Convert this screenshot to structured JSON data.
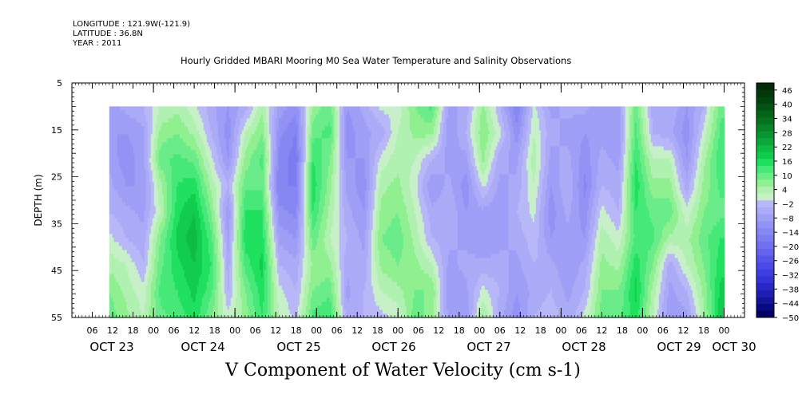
{
  "header": {
    "longitude": "LONGITUDE : 121.9W(-121.9)",
    "latitude": "LATITUDE : 36.8N",
    "year": "YEAR : 2011"
  },
  "chart_data": {
    "type": "heatmap",
    "title": "Hourly Gridded MBARI Mooring M0 Sea Water Temperature and Salinity Observations",
    "variable_title": "V Component of Water Velocity (cm s-1)",
    "ylabel": "DEPTH (m)",
    "ylim": [
      55,
      5
    ],
    "yticks": [
      5,
      15,
      25,
      35,
      45,
      55
    ],
    "data_depth_range": [
      10,
      55
    ],
    "x_hour_ticks": [
      "06",
      "12",
      "18",
      "00",
      "06",
      "12",
      "18",
      "00",
      "06",
      "12",
      "18",
      "00",
      "06",
      "12",
      "18",
      "00",
      "06",
      "12",
      "18",
      "00",
      "06",
      "12",
      "18",
      "00",
      "06",
      "12",
      "18",
      "00",
      "06",
      "12",
      "18",
      "00"
    ],
    "x_date_labels": [
      "OCT 23",
      "OCT 24",
      "OCT 25",
      "OCT 26",
      "OCT 27",
      "OCT 28",
      "OCT 29",
      "OCT 30"
    ],
    "data_time_range_hours": [
      11,
      192
    ],
    "axis_time_range_hours": [
      0,
      198
    ],
    "colorbar": {
      "labels": [
        "46",
        "40",
        "34",
        "28",
        "22",
        "16",
        "10",
        "4",
        "-2",
        "-8",
        "-14",
        "-20",
        "-26",
        "-32",
        "-38",
        "-44",
        "-50"
      ],
      "levels": [
        -50,
        -47,
        -44,
        -41,
        -38,
        -35,
        -32,
        -29,
        -26,
        -23,
        -20,
        -17,
        -14,
        -11,
        -8,
        -5,
        -2,
        1,
        4,
        7,
        10,
        13,
        16,
        19,
        22,
        25,
        28,
        31,
        34,
        37,
        40,
        43,
        46,
        49
      ],
      "low_colors": [
        "#000066",
        "#0a0a80",
        "#141499",
        "#1e1eb3",
        "#2828c8",
        "#3333d6",
        "#3d3de0",
        "#4a4ae6",
        "#5656ea",
        "#6363ee",
        "#7070f0",
        "#7c7cf2",
        "#8787f3",
        "#9393f5",
        "#9f9ff6",
        "#ababf7",
        "#b8b8f8"
      ],
      "high_colors": [
        "#c8f0c8",
        "#b0f0b0",
        "#90f090",
        "#6aec8a",
        "#46e878",
        "#20e060",
        "#12cc4e",
        "#0ebc44",
        "#0aa83a",
        "#089630",
        "#068428",
        "#057420",
        "#046418",
        "#035414",
        "#024410",
        "#02380c",
        "#022c08"
      ]
    },
    "columns": [
      {
        "t": 11,
        "v": [
          -6,
          -8,
          -6,
          -4,
          -2,
          2,
          6,
          10,
          12
        ]
      },
      {
        "t": 16,
        "v": [
          -4,
          -8,
          -10,
          -8,
          -4,
          -2,
          4,
          6,
          8
        ]
      },
      {
        "t": 21,
        "v": [
          -2,
          -6,
          -6,
          -8,
          -6,
          -4,
          -2,
          2,
          4
        ]
      },
      {
        "t": 26,
        "v": [
          4,
          8,
          12,
          6,
          4,
          10,
          12,
          14,
          12
        ]
      },
      {
        "t": 31,
        "v": [
          6,
          10,
          14,
          16,
          18,
          20,
          18,
          16,
          14
        ]
      },
      {
        "t": 36,
        "v": [
          2,
          6,
          12,
          18,
          22,
          24,
          22,
          20,
          18
        ]
      },
      {
        "t": 41,
        "v": [
          -4,
          -2,
          2,
          6,
          10,
          14,
          16,
          14,
          10
        ]
      },
      {
        "t": 46,
        "v": [
          -8,
          -10,
          -8,
          -2,
          -8,
          -6,
          -4,
          -2,
          2
        ]
      },
      {
        "t": 51,
        "v": [
          -4,
          4,
          8,
          12,
          16,
          18,
          14,
          10,
          8
        ]
      },
      {
        "t": 56,
        "v": [
          6,
          10,
          14,
          12,
          16,
          18,
          20,
          18,
          16
        ]
      },
      {
        "t": 61,
        "v": [
          -6,
          -10,
          -12,
          -14,
          -10,
          -6,
          -2,
          2,
          4
        ]
      },
      {
        "t": 66,
        "v": [
          -10,
          -14,
          -16,
          -14,
          -12,
          -8,
          -4,
          -2,
          0
        ]
      },
      {
        "t": 71,
        "v": [
          8,
          12,
          16,
          18,
          16,
          12,
          8,
          10,
          14
        ]
      },
      {
        "t": 76,
        "v": [
          12,
          14,
          10,
          8,
          6,
          4,
          8,
          12,
          16
        ]
      },
      {
        "t": 81,
        "v": [
          -8,
          -10,
          -8,
          -6,
          -4,
          -2,
          -4,
          -6,
          -4
        ]
      },
      {
        "t": 86,
        "v": [
          -4,
          -6,
          -8,
          -10,
          -8,
          -6,
          -4,
          -2,
          -2
        ]
      },
      {
        "t": 91,
        "v": [
          2,
          -4,
          2,
          6,
          8,
          10,
          8,
          4,
          0
        ]
      },
      {
        "t": 96,
        "v": [
          2,
          4,
          6,
          8,
          10,
          12,
          10,
          6,
          2
        ]
      },
      {
        "t": 101,
        "v": [
          10,
          8,
          4,
          2,
          4,
          6,
          8,
          10,
          12
        ]
      },
      {
        "t": 106,
        "v": [
          14,
          8,
          -2,
          -8,
          -4,
          -2,
          4,
          10,
          8
        ]
      },
      {
        "t": 111,
        "v": [
          -6,
          -8,
          -6,
          -4,
          -2,
          -4,
          -6,
          -8,
          -6
        ]
      },
      {
        "t": 116,
        "v": [
          -4,
          -2,
          -6,
          -10,
          -8,
          -6,
          -4,
          -6,
          -8
        ]
      },
      {
        "t": 121,
        "v": [
          8,
          10,
          8,
          2,
          -6,
          -8,
          -4,
          2,
          8
        ]
      },
      {
        "t": 126,
        "v": [
          -2,
          2,
          -4,
          -6,
          -8,
          -6,
          -4,
          -2,
          -4
        ]
      },
      {
        "t": 131,
        "v": [
          -14,
          -10,
          -6,
          -4,
          -2,
          -4,
          -6,
          -8,
          -10
        ]
      },
      {
        "t": 136,
        "v": [
          2,
          4,
          6,
          4,
          2,
          0,
          -2,
          -4,
          -2
        ]
      },
      {
        "t": 141,
        "v": [
          -6,
          -4,
          -6,
          -8,
          -10,
          -8,
          -4,
          -2,
          0
        ]
      },
      {
        "t": 146,
        "v": [
          -4,
          -6,
          -4,
          -2,
          -4,
          -6,
          -8,
          -6,
          -4
        ]
      },
      {
        "t": 151,
        "v": [
          -4,
          -8,
          -10,
          -12,
          -10,
          -8,
          -4,
          -2,
          2
        ]
      },
      {
        "t": 156,
        "v": [
          -8,
          -6,
          -4,
          -2,
          2,
          6,
          8,
          10,
          12
        ]
      },
      {
        "t": 161,
        "v": [
          -6,
          -8,
          -6,
          -4,
          -2,
          2,
          6,
          10,
          12
        ]
      },
      {
        "t": 166,
        "v": [
          12,
          14,
          16,
          18,
          16,
          14,
          18,
          20,
          18
        ]
      },
      {
        "t": 171,
        "v": [
          -4,
          -2,
          4,
          8,
          12,
          14,
          10,
          6,
          4
        ]
      },
      {
        "t": 176,
        "v": [
          -2,
          -4,
          4,
          8,
          12,
          6,
          -4,
          -6,
          -8
        ]
      },
      {
        "t": 181,
        "v": [
          -8,
          -10,
          -8,
          -4,
          2,
          6,
          4,
          -2,
          -6
        ]
      },
      {
        "t": 186,
        "v": [
          -2,
          2,
          6,
          8,
          10,
          12,
          10,
          8,
          6
        ]
      },
      {
        "t": 191,
        "v": [
          12,
          14,
          16,
          14,
          12,
          16,
          18,
          20,
          22
        ]
      }
    ]
  }
}
